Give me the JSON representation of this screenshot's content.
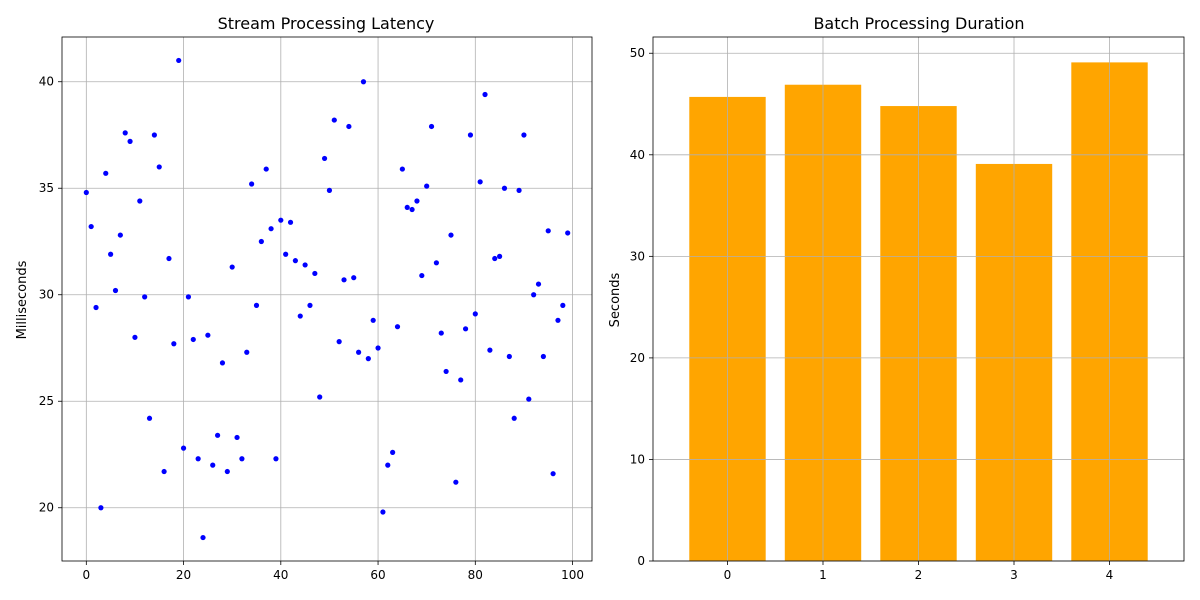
{
  "chart_data": [
    {
      "type": "scatter",
      "title": "Stream Processing Latency",
      "xlabel": "",
      "ylabel": "Milliseconds",
      "xlim": [
        -5,
        104
      ],
      "ylim": [
        17.5,
        42.1
      ],
      "xticks": [
        0,
        20,
        40,
        60,
        80,
        100
      ],
      "yticks": [
        20,
        25,
        30,
        35,
        40
      ],
      "grid": true,
      "color": "#0000ff",
      "x": [
        0,
        1,
        2,
        3,
        4,
        5,
        6,
        7,
        8,
        9,
        10,
        11,
        12,
        13,
        14,
        15,
        16,
        17,
        18,
        19,
        20,
        21,
        22,
        23,
        24,
        25,
        26,
        27,
        28,
        29,
        30,
        31,
        32,
        33,
        34,
        35,
        36,
        37,
        38,
        39,
        40,
        41,
        42,
        43,
        44,
        45,
        46,
        47,
        48,
        49,
        50,
        51,
        52,
        53,
        54,
        55,
        56,
        57,
        58,
        59,
        60,
        61,
        62,
        63,
        64,
        65,
        66,
        67,
        68,
        69,
        70,
        71,
        72,
        73,
        74,
        75,
        76,
        77,
        78,
        79,
        80,
        81,
        82,
        83,
        84,
        85,
        86,
        87,
        88,
        89,
        90,
        91,
        92,
        93,
        94,
        95,
        96,
        97,
        98,
        99
      ],
      "y": [
        34.8,
        33.2,
        29.4,
        20.0,
        35.7,
        31.9,
        30.2,
        32.8,
        37.6,
        37.2,
        28.0,
        34.4,
        29.9,
        24.2,
        37.5,
        36.0,
        21.7,
        31.7,
        27.7,
        41.0,
        22.8,
        29.9,
        27.9,
        22.3,
        18.6,
        28.1,
        22.0,
        23.4,
        26.8,
        21.7,
        31.3,
        23.3,
        22.3,
        27.3,
        35.2,
        29.5,
        32.5,
        35.9,
        33.1,
        22.3,
        33.5,
        31.9,
        33.4,
        31.6,
        29.0,
        31.4,
        29.5,
        31.0,
        25.2,
        36.4,
        34.9,
        38.2,
        27.8,
        30.7,
        37.9,
        30.8,
        27.3,
        40.0,
        27.0,
        28.8,
        27.5,
        19.8,
        22.0,
        22.6,
        28.5,
        35.9,
        34.1,
        34.0,
        34.4,
        30.9,
        35.1,
        37.9,
        31.5,
        28.2,
        26.4,
        32.8,
        21.2,
        26.0,
        28.4,
        37.5,
        29.1,
        35.3,
        39.4,
        27.4,
        31.7,
        31.8,
        35.0,
        27.1,
        24.2,
        34.9,
        37.5,
        25.1,
        30.0,
        30.5,
        27.1,
        33.0,
        21.6,
        28.8,
        29.5,
        32.9
      ]
    },
    {
      "type": "bar",
      "title": "Batch Processing Duration",
      "xlabel": "",
      "ylabel": "Seconds",
      "categories": [
        "0",
        "1",
        "2",
        "3",
        "4"
      ],
      "values": [
        45.7,
        46.9,
        44.8,
        39.1,
        49.1
      ],
      "ylim": [
        0,
        51.6
      ],
      "yticks": [
        0,
        10,
        20,
        30,
        40,
        50
      ],
      "grid": true,
      "color": "#ffa500"
    }
  ]
}
